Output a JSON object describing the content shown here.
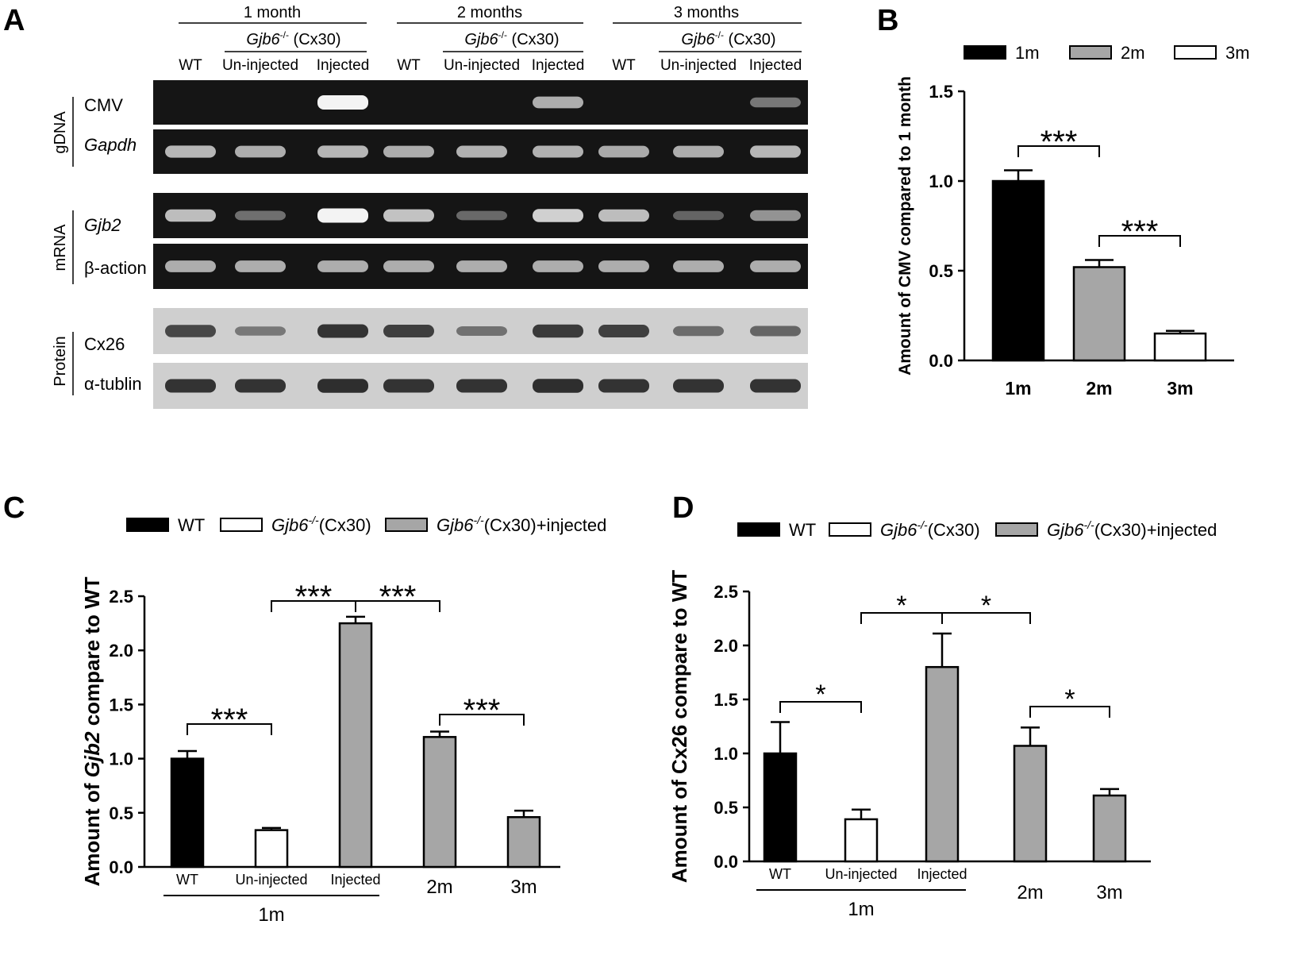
{
  "panel_letters": {
    "a": "A",
    "b": "B",
    "c": "C",
    "d": "D"
  },
  "blot": {
    "timepoints": [
      "1 month",
      "2 months",
      "3 months"
    ],
    "genotype_prefix": "Gjb6",
    "genotype_sup": "-/-",
    "genotype_suffix": " (Cx30)",
    "lanes": [
      "WT",
      "Un-injected",
      "Injected",
      "WT",
      "Un-injected",
      "Injected",
      "WT",
      "Un-injected",
      "Injected"
    ],
    "row_groups": [
      "gDNA",
      "mRNA",
      "Protein"
    ],
    "rows": [
      "CMV",
      "Gapdh",
      "Gjb2",
      "β-action",
      "Cx26",
      "α-tublin"
    ],
    "row_italic": [
      false,
      true,
      true,
      false,
      false,
      false
    ],
    "band_intensity": [
      [
        0,
        0,
        1.0,
        0,
        0,
        0.6,
        0,
        0,
        0.3
      ],
      [
        0.65,
        0.6,
        0.65,
        0.6,
        0.62,
        0.62,
        0.58,
        0.6,
        0.65
      ],
      [
        0.7,
        0.25,
        1.0,
        0.72,
        0.22,
        0.8,
        0.7,
        0.18,
        0.45
      ],
      [
        0.6,
        0.6,
        0.6,
        0.6,
        0.6,
        0.6,
        0.6,
        0.6,
        0.6
      ],
      [
        0.75,
        0.35,
        0.9,
        0.8,
        0.4,
        0.85,
        0.8,
        0.45,
        0.5
      ],
      [
        0.9,
        0.9,
        0.95,
        0.9,
        0.9,
        0.95,
        0.9,
        0.9,
        0.9
      ]
    ]
  },
  "chart_data": [
    {
      "panel": "B",
      "type": "bar",
      "categories": [
        "1m",
        "2m",
        "3m"
      ],
      "values": [
        1.0,
        0.52,
        0.15
      ],
      "errors": [
        0.06,
        0.04,
        0.015
      ],
      "colors": [
        "#000000",
        "#a6a6a6",
        "#ffffff"
      ],
      "legend": [
        "1m",
        "2m",
        "3m"
      ],
      "legend_position": "top",
      "ylabel": "Amount of CMV compared to 1 month",
      "ylim": [
        0,
        1.5
      ],
      "yticks": [
        "0.0",
        "0.5",
        "1.0",
        "1.5"
      ],
      "significance": [
        {
          "from": 0,
          "to": 1,
          "label": "***"
        },
        {
          "from": 1,
          "to": 2,
          "label": "***"
        }
      ]
    },
    {
      "panel": "C",
      "type": "bar",
      "categories": [
        "WT",
        "Un-injected",
        "Injected",
        "2m",
        "3m"
      ],
      "values": [
        1.0,
        0.34,
        2.25,
        1.2,
        0.46
      ],
      "errors": [
        0.07,
        0.02,
        0.06,
        0.05,
        0.06
      ],
      "colors": [
        "#000000",
        "#ffffff",
        "#a6a6a6",
        "#a6a6a6",
        "#a6a6a6"
      ],
      "legend": [
        "WT",
        "Gjb6-/-(Cx30)",
        "Gjb6-/-(Cx30)+injected"
      ],
      "legend_position": "top",
      "ylabel_parts": [
        "Amount of ",
        "Gjb2",
        " compare to WT"
      ],
      "ylim": [
        0,
        2.5
      ],
      "yticks": [
        "0.0",
        "0.5",
        "1.0",
        "1.5",
        "2.0",
        "2.5"
      ],
      "group_label": "1m",
      "significance": [
        {
          "from": 0,
          "to": 1,
          "label": "***"
        },
        {
          "from": 1,
          "to": 2,
          "label": "***"
        },
        {
          "from": 2,
          "to": 3,
          "label": "***"
        },
        {
          "from": 3,
          "to": 4,
          "label": "***"
        }
      ]
    },
    {
      "panel": "D",
      "type": "bar",
      "categories": [
        "WT",
        "Un-injected",
        "Injected",
        "2m",
        "3m"
      ],
      "values": [
        1.0,
        0.39,
        1.8,
        1.07,
        0.61
      ],
      "errors": [
        0.29,
        0.09,
        0.31,
        0.17,
        0.06
      ],
      "colors": [
        "#000000",
        "#ffffff",
        "#a6a6a6",
        "#a6a6a6",
        "#a6a6a6"
      ],
      "legend": [
        "WT",
        "Gjb6-/-(Cx30)",
        "Gjb6-/-(Cx30)+injected"
      ],
      "legend_position": "top",
      "ylabel": "Amount of Cx26 compare to WT",
      "ylim": [
        0,
        2.5
      ],
      "yticks": [
        "0.0",
        "0.5",
        "1.0",
        "1.5",
        "2.0",
        "2.5"
      ],
      "group_label": "1m",
      "significance": [
        {
          "from": 0,
          "to": 1,
          "label": "*"
        },
        {
          "from": 1,
          "to": 2,
          "label": "*"
        },
        {
          "from": 2,
          "to": 3,
          "label": "*"
        },
        {
          "from": 3,
          "to": 4,
          "label": "*"
        }
      ]
    }
  ]
}
